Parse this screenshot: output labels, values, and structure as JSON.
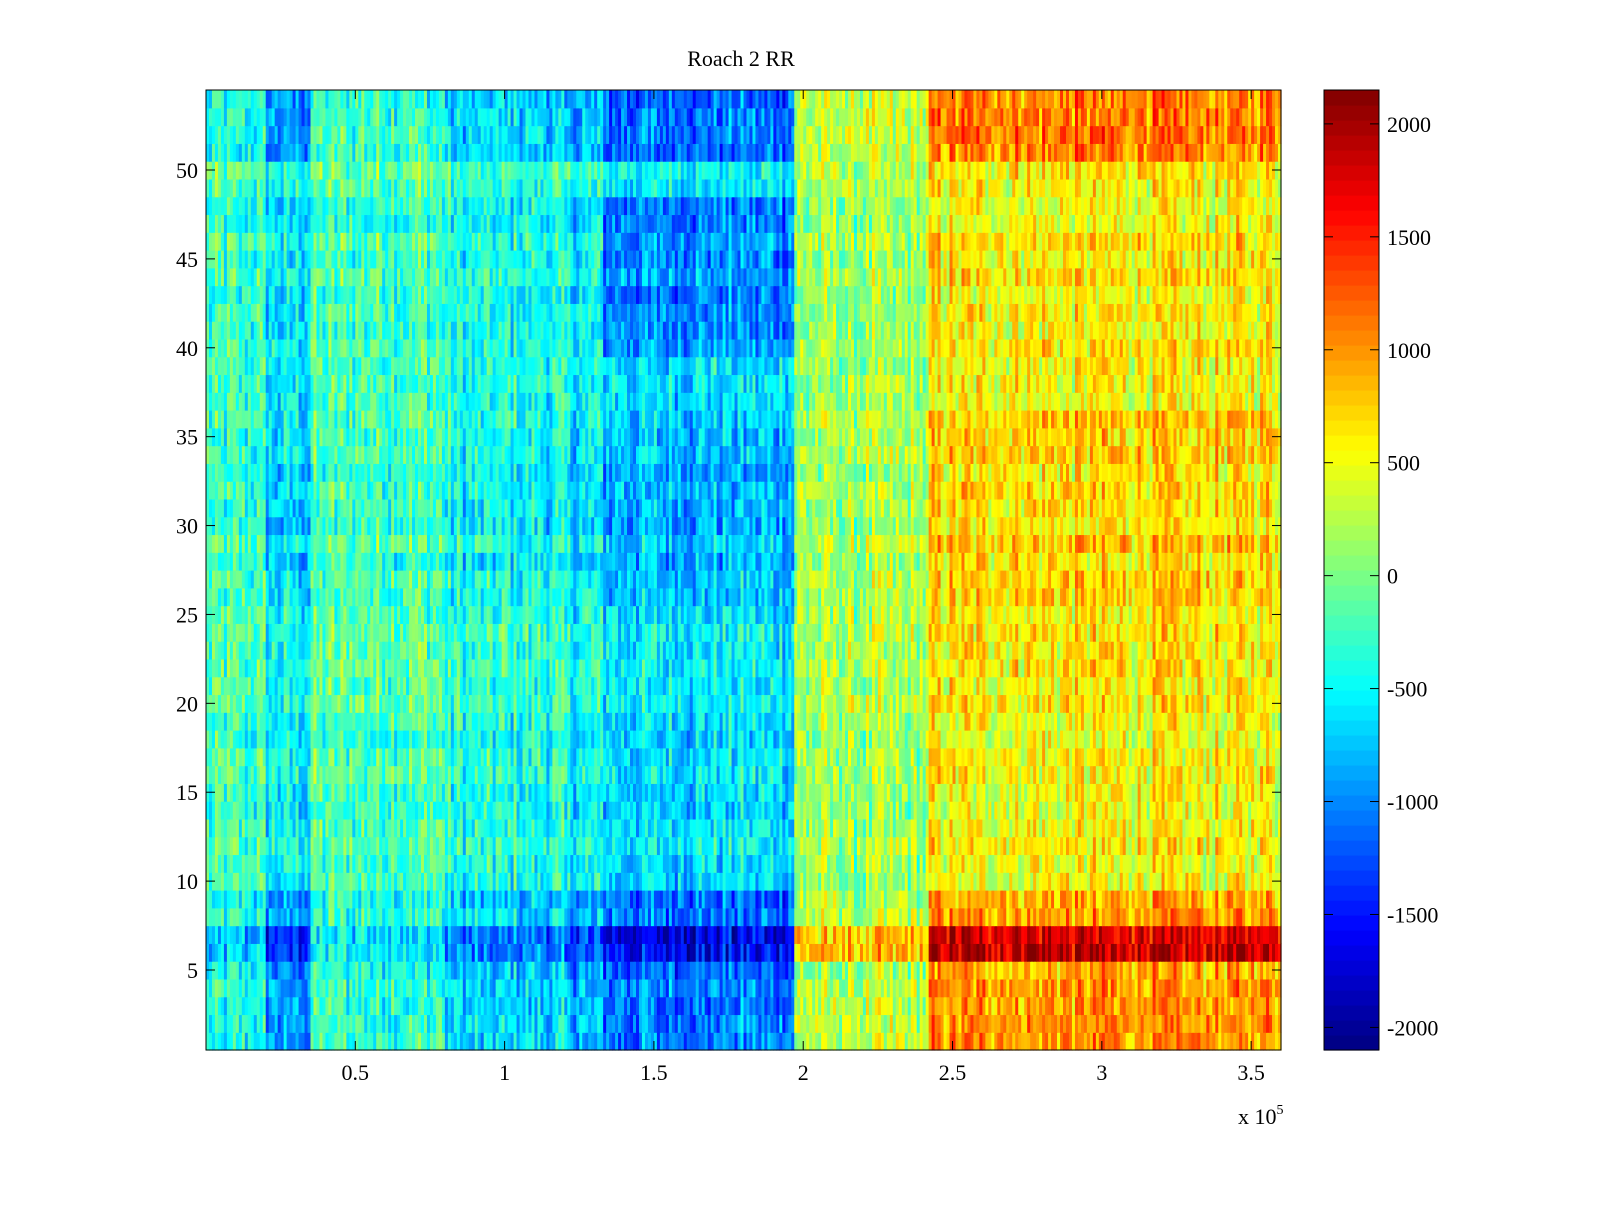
{
  "chart_data": {
    "type": "heatmap",
    "title": "Roach 2 RR",
    "xlabel": "",
    "ylabel": "",
    "x_multiplier_label": "x 10",
    "x_multiplier_exponent": "5",
    "xlim": [
      0,
      3.6
    ],
    "ylim": [
      0.5,
      54.5
    ],
    "x_ticks": [
      0.5,
      1,
      1.5,
      2,
      2.5,
      3,
      3.5
    ],
    "x_tick_labels": [
      "0.5",
      "1",
      "1.5",
      "2",
      "2.5",
      "3",
      "3.5"
    ],
    "y_ticks": [
      5,
      10,
      15,
      20,
      25,
      30,
      35,
      40,
      45,
      50
    ],
    "y_tick_labels": [
      "5",
      "10",
      "15",
      "20",
      "25",
      "30",
      "35",
      "40",
      "45",
      "50"
    ],
    "rows": 54,
    "colormap": "jet",
    "clim": [
      -2100,
      2150
    ],
    "colorbar": {
      "ticks": [
        2000,
        1500,
        1000,
        500,
        0,
        -500,
        -1000,
        -1500,
        -2000
      ],
      "tick_labels": [
        "2000",
        "1500",
        "1000",
        "500",
        "0",
        "-500",
        "-1000",
        "-1500",
        "-2000"
      ],
      "placement": "right"
    },
    "column_bands": [
      {
        "x": [
          0.0,
          0.2
        ],
        "base": -300
      },
      {
        "x": [
          0.2,
          0.35
        ],
        "base": -600
      },
      {
        "x": [
          0.35,
          0.8
        ],
        "base": -200
      },
      {
        "x": [
          0.8,
          1.2
        ],
        "base": -450
      },
      {
        "x": [
          1.2,
          1.33
        ],
        "base": -550
      },
      {
        "x": [
          1.33,
          1.97
        ],
        "base": -700
      },
      {
        "x": [
          1.97,
          2.42
        ],
        "base": 150
      },
      {
        "x": [
          2.42,
          3.6
        ],
        "base": 650
      }
    ],
    "row_features": [
      {
        "rows": [
          1,
          9
        ],
        "effect": "amplified"
      },
      {
        "rows": [
          6,
          7
        ],
        "effect": "strongly amplified"
      },
      {
        "rows": [
          40,
          48
        ],
        "effect": "dark block at 1.35-1.97"
      },
      {
        "rows": [
          51,
          54
        ],
        "effect": "amplified"
      }
    ],
    "grid": false
  }
}
